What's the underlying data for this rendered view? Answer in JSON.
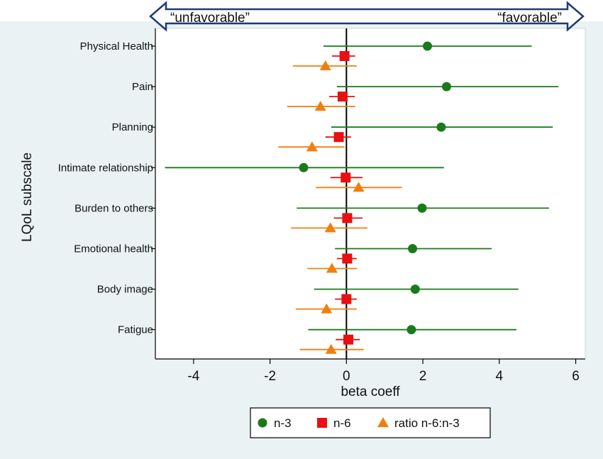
{
  "direction": {
    "left_label": "“unfavorable”",
    "right_label": "“favorable”"
  },
  "chart_data": {
    "type": "scatter",
    "subtype": "forest-plot",
    "xlabel": "beta coeff",
    "ylabel": "LQoL subscale",
    "xlim": [
      -5,
      6.25
    ],
    "xticks": [
      -4,
      -2,
      0,
      2,
      4,
      6
    ],
    "xtick_labels": [
      "-4",
      "-2",
      "0",
      "2",
      "4",
      "6"
    ],
    "reference_line_x": 0,
    "grid": false,
    "legend_position": "bottom",
    "categories": [
      "Physical Health",
      "Pain",
      "Planning",
      "Intimate relationship",
      "Burden to others",
      "Emotional health",
      "Body image",
      "Fatigue"
    ],
    "series": [
      {
        "name": "n-3",
        "color": "#1a7a1a",
        "marker": "circle",
        "estimates": [
          2.12,
          2.62,
          2.48,
          -1.12,
          1.98,
          1.73,
          1.8,
          1.7
        ],
        "ci_low": [
          -0.6,
          -0.25,
          -0.4,
          -4.75,
          -1.3,
          -0.3,
          -0.85,
          -1.0
        ],
        "ci_high": [
          4.85,
          5.55,
          5.4,
          2.55,
          5.3,
          3.8,
          4.5,
          4.45
        ]
      },
      {
        "name": "n-6",
        "color": "#e81010",
        "marker": "square",
        "estimates": [
          -0.05,
          -0.1,
          -0.2,
          -0.02,
          0.02,
          0.02,
          0.0,
          0.05
        ],
        "ci_low": [
          -0.38,
          -0.45,
          -0.55,
          -0.42,
          -0.33,
          -0.25,
          -0.3,
          -0.28
        ],
        "ci_high": [
          0.23,
          0.22,
          0.12,
          0.42,
          0.42,
          0.27,
          0.27,
          0.35
        ]
      },
      {
        "name": "ratio n-6:n-3",
        "color": "#f07f0f",
        "marker": "triangle",
        "estimates": [
          -0.55,
          -0.68,
          -0.9,
          0.32,
          -0.42,
          -0.38,
          -0.52,
          -0.4
        ],
        "ci_low": [
          -1.4,
          -1.55,
          -1.78,
          -0.8,
          -1.45,
          -1.02,
          -1.33,
          -1.22
        ],
        "ci_high": [
          0.27,
          0.23,
          -0.05,
          1.45,
          0.55,
          0.28,
          0.27,
          0.45
        ]
      }
    ]
  }
}
